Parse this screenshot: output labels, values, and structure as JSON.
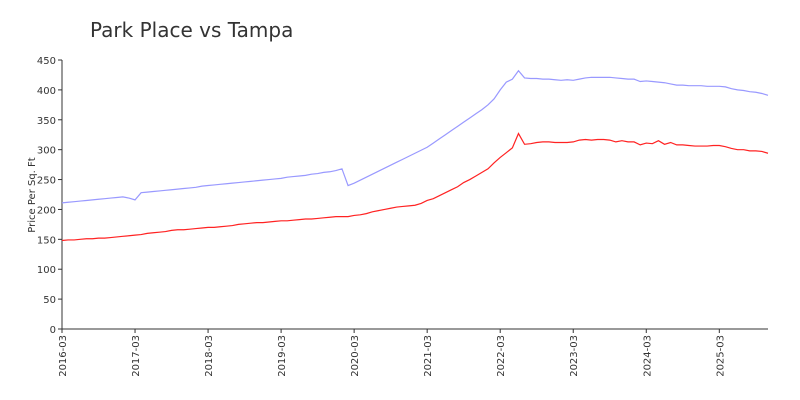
{
  "chart_data": {
    "type": "line",
    "title": "Park Place vs Tampa",
    "y_label": "Price Per Sq. Ft",
    "x": [
      "2016-03",
      "2016-04",
      "2016-05",
      "2016-06",
      "2016-07",
      "2016-08",
      "2016-09",
      "2016-10",
      "2016-11",
      "2016-12",
      "2017-01",
      "2017-02",
      "2017-03",
      "2017-04",
      "2017-05",
      "2017-06",
      "2017-07",
      "2017-08",
      "2017-09",
      "2017-10",
      "2017-11",
      "2017-12",
      "2018-01",
      "2018-02",
      "2018-03",
      "2018-04",
      "2018-05",
      "2018-06",
      "2018-07",
      "2018-08",
      "2018-09",
      "2018-10",
      "2018-11",
      "2018-12",
      "2019-01",
      "2019-02",
      "2019-03",
      "2019-04",
      "2019-05",
      "2019-06",
      "2019-07",
      "2019-08",
      "2019-09",
      "2019-10",
      "2019-11",
      "2019-12",
      "2020-01",
      "2020-02",
      "2020-03",
      "2020-04",
      "2020-05",
      "2020-06",
      "2020-07",
      "2020-08",
      "2020-09",
      "2020-10",
      "2020-11",
      "2020-12",
      "2021-01",
      "2021-02",
      "2021-03",
      "2021-04",
      "2021-05",
      "2021-06",
      "2021-07",
      "2021-08",
      "2021-09",
      "2021-10",
      "2021-11",
      "2021-12",
      "2022-01",
      "2022-02",
      "2022-03",
      "2022-04",
      "2022-05",
      "2022-06",
      "2022-07",
      "2022-08",
      "2022-09",
      "2022-10",
      "2022-11",
      "2022-12",
      "2023-01",
      "2023-02",
      "2023-03",
      "2023-04",
      "2023-05",
      "2023-06",
      "2023-07",
      "2023-08",
      "2023-09",
      "2023-10",
      "2023-11",
      "2023-12",
      "2024-01",
      "2024-02",
      "2024-03",
      "2024-04",
      "2024-05",
      "2024-06",
      "2024-07",
      "2024-08",
      "2024-09",
      "2024-10",
      "2024-11",
      "2024-12",
      "2025-01",
      "2025-02",
      "2025-03",
      "2025-04",
      "2025-05",
      "2025-06",
      "2025-07",
      "2025-08",
      "2025-09",
      "2025-10",
      "2025-11"
    ],
    "xlim": [
      "2016-03",
      "2025-11"
    ],
    "xticks": [
      "2016-03",
      "2017-03",
      "2018-03",
      "2019-03",
      "2020-03",
      "2021-03",
      "2022-03",
      "2023-03",
      "2024-03",
      "2025-03"
    ],
    "ylim": [
      0,
      450
    ],
    "yticks": [
      0,
      50,
      100,
      150,
      200,
      250,
      300,
      350,
      400,
      450
    ],
    "series": [
      {
        "color": "#9999ff",
        "values": [
          211,
          212,
          213,
          214,
          215,
          216,
          217,
          218,
          219,
          220,
          221,
          219,
          216,
          228,
          229,
          230,
          231,
          232,
          233,
          234,
          235,
          236,
          237,
          239,
          240,
          241,
          242,
          243,
          244,
          245,
          246,
          247,
          248,
          249,
          250,
          251,
          252,
          254,
          255,
          256,
          257,
          259,
          260,
          262,
          263,
          265,
          268,
          240,
          244,
          249,
          254,
          259,
          264,
          269,
          274,
          279,
          284,
          289,
          294,
          299,
          304,
          311,
          318,
          325,
          332,
          339,
          346,
          353,
          360,
          367,
          375,
          385,
          400,
          413,
          418,
          432,
          420,
          419,
          419,
          418,
          418,
          417,
          416,
          417,
          416,
          418,
          420,
          421,
          421,
          421,
          421,
          420,
          419,
          418,
          418,
          414,
          415,
          414,
          413,
          412,
          410,
          408,
          408,
          407,
          407,
          407,
          406,
          406,
          406,
          405,
          402,
          400,
          399,
          397,
          396,
          394,
          391
        ]
      },
      {
        "color": "#ff2222",
        "values": [
          148,
          149,
          149,
          150,
          151,
          151,
          152,
          152,
          153,
          154,
          155,
          156,
          157,
          158,
          160,
          161,
          162,
          163,
          165,
          166,
          166,
          167,
          168,
          169,
          170,
          170,
          171,
          172,
          173,
          175,
          176,
          177,
          178,
          178,
          179,
          180,
          181,
          181,
          182,
          183,
          184,
          184,
          185,
          186,
          187,
          188,
          188,
          188,
          190,
          191,
          193,
          196,
          198,
          200,
          202,
          204,
          205,
          206,
          207,
          210,
          215,
          218,
          223,
          228,
          233,
          238,
          245,
          250,
          256,
          262,
          268,
          278,
          287,
          295,
          303,
          327,
          309,
          310,
          312,
          313,
          313,
          312,
          312,
          312,
          313,
          316,
          317,
          316,
          317,
          317,
          316,
          313,
          315,
          313,
          313,
          308,
          311,
          310,
          315,
          309,
          312,
          308,
          308,
          307,
          306,
          306,
          306,
          307,
          307,
          305,
          302,
          300,
          300,
          298,
          298,
          297,
          294
        ]
      }
    ]
  }
}
